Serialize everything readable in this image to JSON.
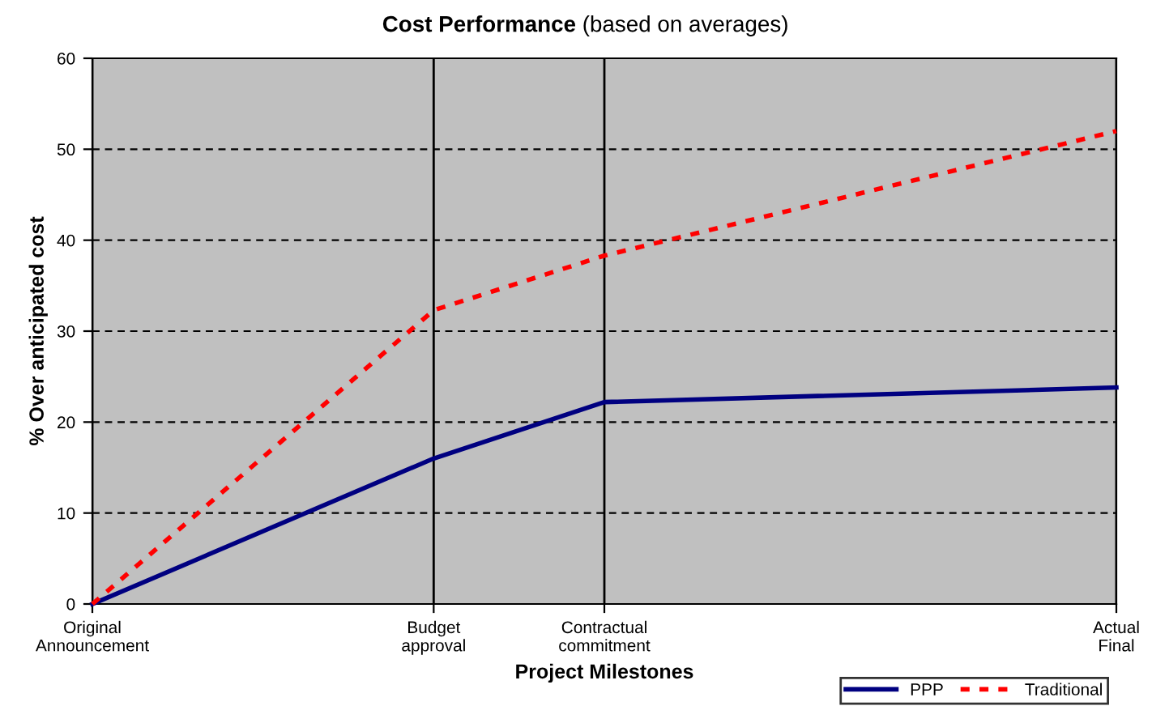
{
  "chart_data": {
    "type": "line",
    "title": "Cost Performance",
    "subtitle": "(based on averages)",
    "xlabel": "Project Milestones",
    "ylabel": "% Over anticipated cost",
    "categories": [
      "Original\nAnnouncement",
      null,
      "Budget\napproval",
      "Contractual\ncommitment",
      null,
      null,
      "Actual\nFinal"
    ],
    "ylim": [
      0,
      60
    ],
    "yticks": [
      0,
      10,
      20,
      30,
      40,
      50,
      60
    ],
    "series": [
      {
        "name": "PPP",
        "color": "#000080",
        "values": [
          0,
          null,
          16,
          22.2,
          null,
          null,
          23.8
        ],
        "line_style": "solid"
      },
      {
        "name": "Traditional",
        "color": "#ff0000",
        "values": [
          0,
          null,
          32.3,
          38.3,
          null,
          null,
          52
        ],
        "line_style": "dotted"
      }
    ],
    "grid": true,
    "legend": "bottom right",
    "marker": "none"
  }
}
